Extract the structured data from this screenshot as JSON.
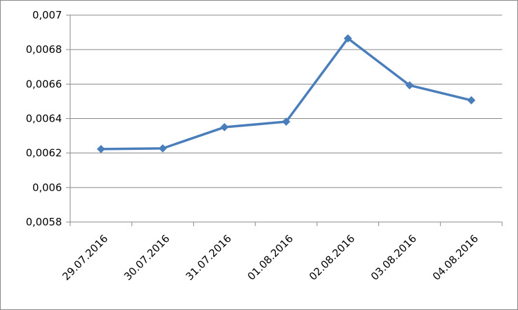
{
  "chart_data": {
    "type": "line",
    "categories": [
      "29.07.2016",
      "30.07.2016",
      "31.07.2016",
      "01.08.2016",
      "02.08.2016",
      "03.08.2016",
      "04.08.2016"
    ],
    "series": [
      {
        "color": "#4a7ebb",
        "values": [
          0.006223,
          0.006227,
          0.00635,
          0.006382,
          0.006865,
          0.006593,
          0.006506
        ]
      }
    ],
    "ylim": [
      0.0058,
      0.007
    ],
    "yticks": [
      {
        "value": 0.0058,
        "label": "0,0058"
      },
      {
        "value": 0.006,
        "label": "0,006"
      },
      {
        "value": 0.0062,
        "label": "0,0062"
      },
      {
        "value": 0.0064,
        "label": "0,0064"
      },
      {
        "value": 0.0066,
        "label": "0,0066"
      },
      {
        "value": 0.0068,
        "label": "0,0068"
      },
      {
        "value": 0.007,
        "label": "0,007"
      }
    ],
    "grid": true
  }
}
